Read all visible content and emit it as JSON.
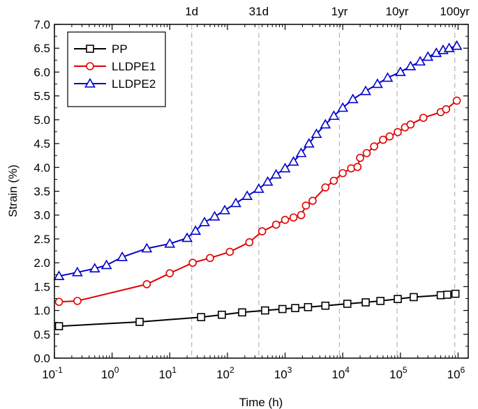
{
  "chart_data": {
    "type": "line",
    "title": "",
    "xlabel": "Time (h)",
    "ylabel": "Strain (%)",
    "xscale": "log",
    "xlim": [
      0.1,
      1500000
    ],
    "ylim": [
      0.0,
      7.0
    ],
    "grid": false,
    "legend_position": "top-left",
    "x_tick_labels": [
      {
        "value": 0.1,
        "base": "10",
        "exp": "-1"
      },
      {
        "value": 1,
        "base": "10",
        "exp": "0"
      },
      {
        "value": 10,
        "base": "10",
        "exp": "1"
      },
      {
        "value": 100,
        "base": "10",
        "exp": "2"
      },
      {
        "value": 1000,
        "base": "10",
        "exp": "3"
      },
      {
        "value": 10000,
        "base": "10",
        "exp": "4"
      },
      {
        "value": 100000,
        "base": "10",
        "exp": "5"
      },
      {
        "value": 1000000,
        "base": "10",
        "exp": "6"
      }
    ],
    "y_ticks": [
      "0.0",
      "0.5",
      "1.0",
      "1.5",
      "2.0",
      "2.5",
      "3.0",
      "3.5",
      "4.0",
      "4.5",
      "5.0",
      "5.5",
      "6.0",
      "6.5",
      "7.0"
    ],
    "reference_lines": [
      {
        "label": "1d",
        "x": 24
      },
      {
        "label": "31d",
        "x": 350
      },
      {
        "label": "1yr",
        "x": 8760
      },
      {
        "label": "10yr",
        "x": 87600
      },
      {
        "label": "100yr",
        "x": 876000
      }
    ],
    "series": [
      {
        "name": "PP",
        "color": "#000000",
        "marker": "square",
        "x": [
          0.12,
          3,
          35,
          80,
          180,
          450,
          900,
          1500,
          2500,
          5000,
          12000,
          25000,
          45000,
          90000,
          170000,
          500000,
          650000,
          900000
        ],
        "y": [
          0.67,
          0.76,
          0.86,
          0.91,
          0.96,
          1.0,
          1.03,
          1.05,
          1.07,
          1.1,
          1.14,
          1.17,
          1.2,
          1.24,
          1.28,
          1.32,
          1.33,
          1.35
        ]
      },
      {
        "name": "LLDPE1",
        "color": "#e00000",
        "marker": "circle",
        "x": [
          0.12,
          0.25,
          4,
          10,
          25,
          50,
          110,
          240,
          400,
          700,
          1000,
          1400,
          1900,
          2300,
          3000,
          5000,
          7000,
          10000,
          14000,
          18000,
          20000,
          26000,
          35000,
          50000,
          65000,
          90000,
          120000,
          150000,
          250000,
          500000,
          620000,
          950000
        ],
        "y": [
          1.18,
          1.2,
          1.55,
          1.78,
          2.0,
          2.1,
          2.23,
          2.43,
          2.66,
          2.8,
          2.9,
          2.95,
          3.0,
          3.2,
          3.3,
          3.58,
          3.72,
          3.88,
          3.98,
          4.01,
          4.2,
          4.3,
          4.44,
          4.58,
          4.65,
          4.74,
          4.84,
          4.9,
          5.04,
          5.16,
          5.22,
          5.4
        ]
      },
      {
        "name": "LLDPE2",
        "color": "#0000cc",
        "marker": "triangle",
        "x": [
          0.12,
          0.25,
          0.5,
          0.8,
          1.5,
          4,
          10,
          20,
          28,
          40,
          60,
          90,
          140,
          220,
          350,
          500,
          700,
          1000,
          1400,
          1900,
          2600,
          3500,
          5000,
          7000,
          10000,
          15000,
          25000,
          40000,
          60000,
          100000,
          150000,
          220000,
          300000,
          420000,
          550000,
          700000,
          950000
        ],
        "y": [
          1.72,
          1.8,
          1.88,
          1.95,
          2.12,
          2.3,
          2.4,
          2.52,
          2.67,
          2.85,
          2.97,
          3.1,
          3.25,
          3.4,
          3.55,
          3.7,
          3.85,
          3.98,
          4.12,
          4.3,
          4.5,
          4.7,
          4.9,
          5.08,
          5.25,
          5.43,
          5.6,
          5.75,
          5.88,
          6.0,
          6.12,
          6.22,
          6.32,
          6.4,
          6.46,
          6.5,
          6.55
        ]
      }
    ]
  }
}
